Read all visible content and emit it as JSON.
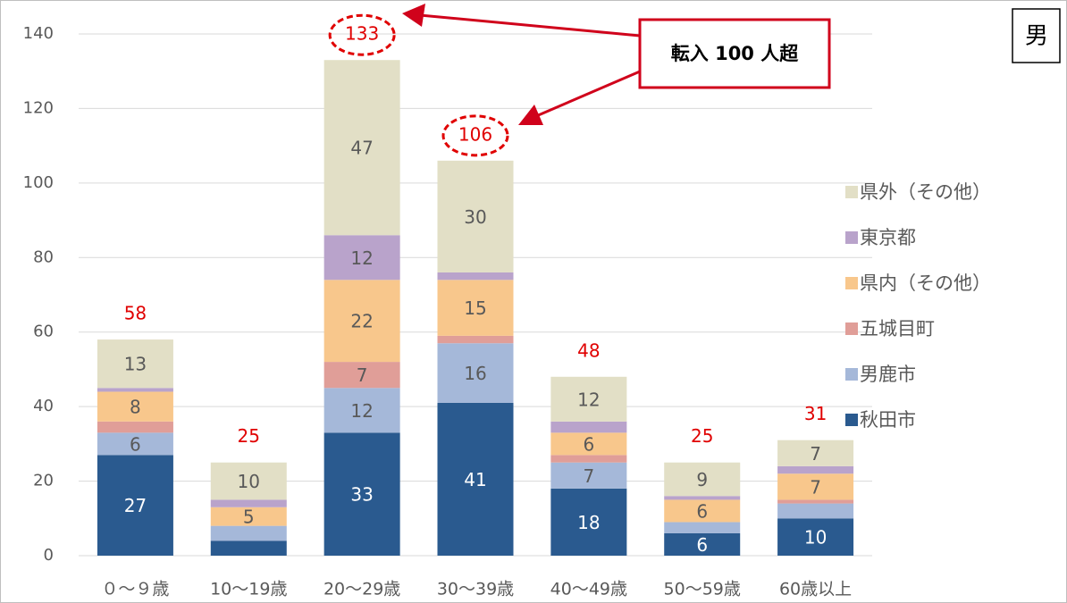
{
  "chart_data": {
    "type": "stacked_bar",
    "categories": [
      "０～９歳",
      "10～19歳",
      "20～29歳",
      "30～39歳",
      "40～49歳",
      "50～59歳",
      "60歳以上"
    ],
    "series": [
      {
        "name": "秋田市",
        "color": "#2a5a8f",
        "values": [
          27,
          4,
          33,
          41,
          18,
          6,
          10
        ]
      },
      {
        "name": "男鹿市",
        "color": "#a5b8d9",
        "values": [
          6,
          4,
          12,
          16,
          7,
          3,
          4
        ]
      },
      {
        "name": "五城目町",
        "color": "#e09e98",
        "values": [
          3,
          0,
          7,
          2,
          2,
          0,
          1
        ]
      },
      {
        "name": "県内（その他）",
        "color": "#f8c78c",
        "values": [
          8,
          5,
          22,
          15,
          6,
          6,
          7
        ]
      },
      {
        "name": "東京都",
        "color": "#b9a3cb",
        "values": [
          1,
          2,
          12,
          2,
          3,
          1,
          2
        ]
      },
      {
        "name": "県外（その他）",
        "color": "#e2dfc6",
        "values": [
          13,
          10,
          47,
          30,
          12,
          9,
          7
        ]
      }
    ],
    "totals": [
      58,
      25,
      133,
      106,
      48,
      25,
      31
    ],
    "annotation": "転入 100 人超",
    "corner_label": "男",
    "ylim": [
      0,
      140
    ],
    "yticks": [
      0,
      20,
      40,
      60,
      80,
      100,
      120,
      140
    ],
    "grid": true,
    "legend": "right"
  }
}
